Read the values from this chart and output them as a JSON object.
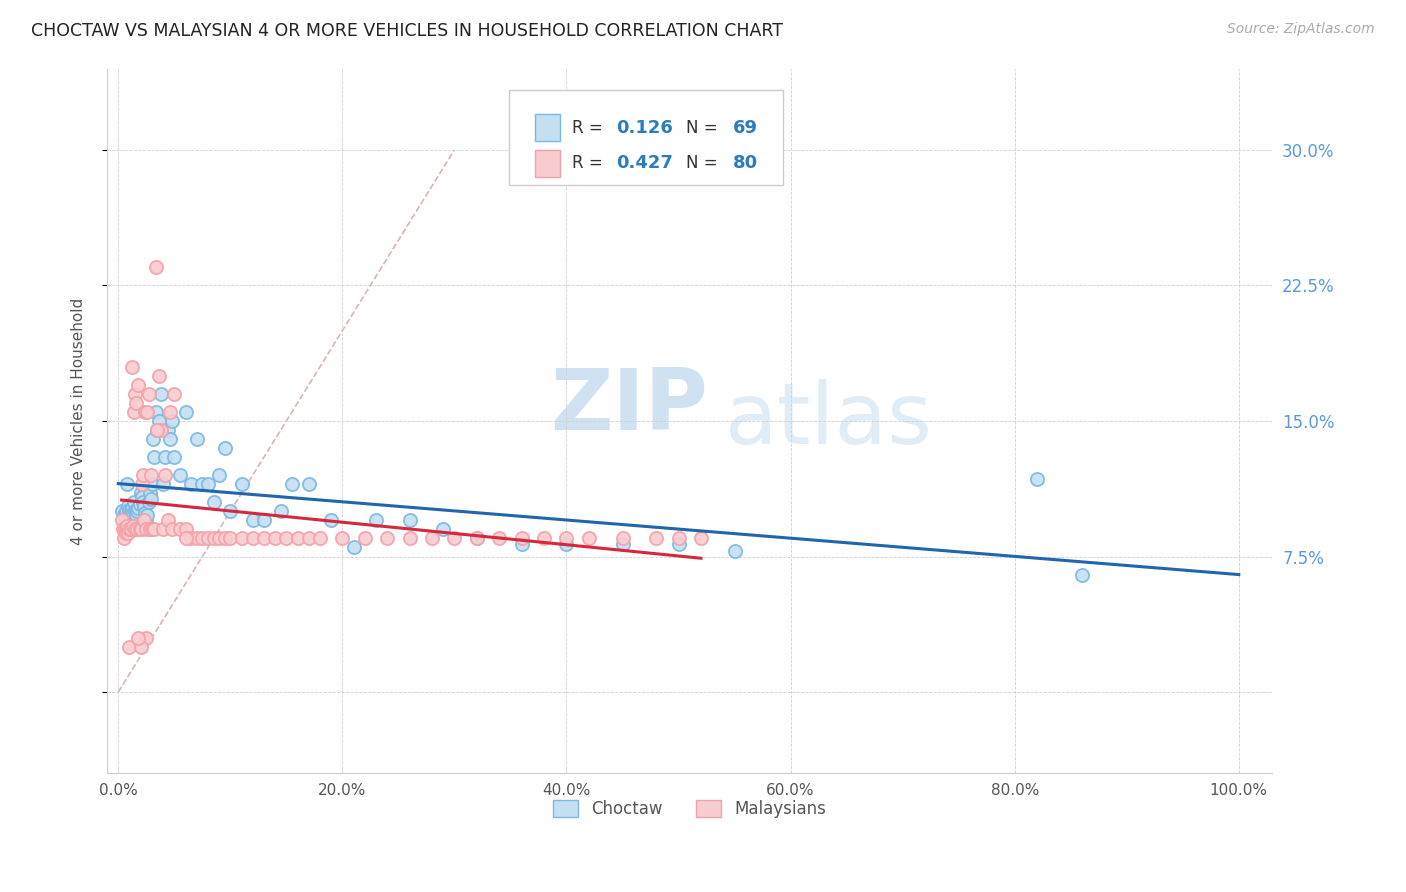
{
  "title": "CHOCTAW VS MALAYSIAN 4 OR MORE VEHICLES IN HOUSEHOLD CORRELATION CHART",
  "source": "Source: ZipAtlas.com",
  "ylabel": "4 or more Vehicles in Household",
  "xlim": [
    -0.01,
    1.03
  ],
  "ylim": [
    -0.045,
    0.345
  ],
  "choctaw_R": 0.126,
  "choctaw_N": 69,
  "malaysian_R": 0.427,
  "malaysian_N": 80,
  "choctaw_color": "#7bb8e0",
  "malaysian_color": "#f4a0a8",
  "choctaw_marker_face": "#c5dff2",
  "malaysian_marker_face": "#f9ccd0",
  "trend_line_choctaw_color": "#2166ac",
  "trend_line_malaysian_color": "#d6283c",
  "diagonal_color": "#d8b4b4",
  "background_color": "#ffffff",
  "watermark_zip": "ZIP",
  "watermark_atlas": "atlas",
  "choctaw_x": [
    0.003,
    0.005,
    0.006,
    0.007,
    0.008,
    0.009,
    0.01,
    0.01,
    0.011,
    0.012,
    0.013,
    0.014,
    0.015,
    0.016,
    0.017,
    0.018,
    0.019,
    0.02,
    0.021,
    0.022,
    0.023,
    0.024,
    0.025,
    0.026,
    0.027,
    0.028,
    0.029,
    0.03,
    0.031,
    0.032,
    0.034,
    0.035,
    0.036,
    0.038,
    0.04,
    0.042,
    0.044,
    0.046,
    0.048,
    0.05,
    0.055,
    0.06,
    0.065,
    0.07,
    0.075,
    0.08,
    0.085,
    0.09,
    0.095,
    0.1,
    0.11,
    0.12,
    0.13,
    0.145,
    0.155,
    0.17,
    0.19,
    0.21,
    0.23,
    0.26,
    0.29,
    0.32,
    0.36,
    0.4,
    0.45,
    0.5,
    0.55,
    0.82,
    0.86
  ],
  "choctaw_y": [
    0.1,
    0.098,
    0.097,
    0.1,
    0.115,
    0.103,
    0.099,
    0.101,
    0.1,
    0.102,
    0.099,
    0.105,
    0.1,
    0.098,
    0.1,
    0.102,
    0.104,
    0.11,
    0.108,
    0.105,
    0.103,
    0.099,
    0.095,
    0.098,
    0.105,
    0.11,
    0.107,
    0.115,
    0.14,
    0.13,
    0.155,
    0.145,
    0.15,
    0.165,
    0.115,
    0.13,
    0.145,
    0.14,
    0.15,
    0.13,
    0.12,
    0.155,
    0.115,
    0.14,
    0.115,
    0.115,
    0.105,
    0.12,
    0.135,
    0.1,
    0.115,
    0.095,
    0.095,
    0.1,
    0.115,
    0.115,
    0.095,
    0.08,
    0.095,
    0.095,
    0.09,
    0.085,
    0.082,
    0.082,
    0.082,
    0.082,
    0.078,
    0.118,
    0.065
  ],
  "malaysian_x": [
    0.003,
    0.004,
    0.005,
    0.006,
    0.007,
    0.008,
    0.008,
    0.009,
    0.01,
    0.01,
    0.011,
    0.012,
    0.013,
    0.014,
    0.015,
    0.015,
    0.016,
    0.017,
    0.018,
    0.019,
    0.02,
    0.021,
    0.022,
    0.023,
    0.024,
    0.025,
    0.026,
    0.027,
    0.028,
    0.029,
    0.03,
    0.032,
    0.034,
    0.036,
    0.038,
    0.04,
    0.042,
    0.044,
    0.046,
    0.048,
    0.05,
    0.055,
    0.06,
    0.065,
    0.07,
    0.075,
    0.08,
    0.085,
    0.09,
    0.095,
    0.1,
    0.11,
    0.12,
    0.13,
    0.14,
    0.15,
    0.16,
    0.17,
    0.18,
    0.2,
    0.22,
    0.24,
    0.26,
    0.28,
    0.3,
    0.32,
    0.34,
    0.36,
    0.38,
    0.4,
    0.42,
    0.45,
    0.48,
    0.5,
    0.52,
    0.06,
    0.035,
    0.025,
    0.02,
    0.018
  ],
  "malaysian_y": [
    0.095,
    0.09,
    0.085,
    0.09,
    0.088,
    0.09,
    0.092,
    0.088,
    0.09,
    0.025,
    0.09,
    0.18,
    0.092,
    0.155,
    0.165,
    0.09,
    0.16,
    0.09,
    0.17,
    0.09,
    0.09,
    0.115,
    0.12,
    0.095,
    0.155,
    0.09,
    0.155,
    0.165,
    0.09,
    0.12,
    0.09,
    0.09,
    0.235,
    0.175,
    0.145,
    0.09,
    0.12,
    0.095,
    0.155,
    0.09,
    0.165,
    0.09,
    0.09,
    0.085,
    0.085,
    0.085,
    0.085,
    0.085,
    0.085,
    0.085,
    0.085,
    0.085,
    0.085,
    0.085,
    0.085,
    0.085,
    0.085,
    0.085,
    0.085,
    0.085,
    0.085,
    0.085,
    0.085,
    0.085,
    0.085,
    0.085,
    0.085,
    0.085,
    0.085,
    0.085,
    0.085,
    0.085,
    0.085,
    0.085,
    0.085,
    0.085,
    0.145,
    0.03,
    0.025,
    0.03
  ]
}
